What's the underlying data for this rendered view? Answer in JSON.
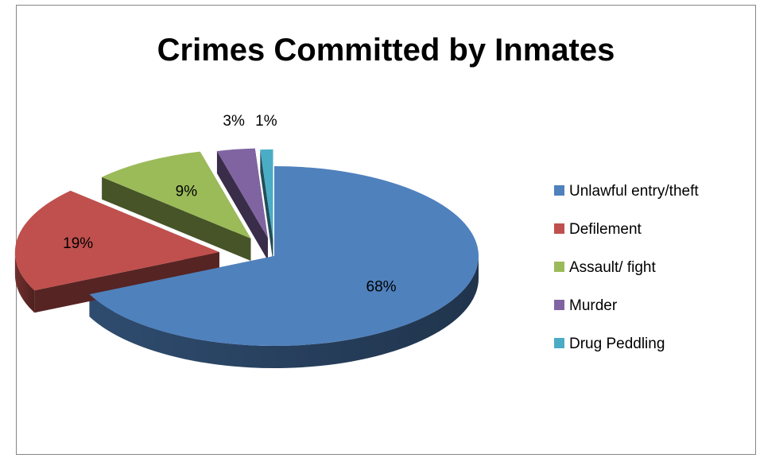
{
  "chart_data": {
    "type": "pie",
    "style": "3d-exploded",
    "title": "Crimes Committed by Inmates",
    "categories": [
      "Unlawful entry/theft",
      "Defilement",
      "Assault/ fight",
      "Murder",
      "Drug Peddling"
    ],
    "values": [
      68,
      19,
      9,
      3,
      1
    ],
    "data_labels": [
      "68%",
      "19%",
      "9%",
      "3%",
      "1%"
    ],
    "colors": [
      "#4F81BD",
      "#C0504D",
      "#9BBB59",
      "#8064A2",
      "#4BACC6"
    ],
    "legend": {
      "position": "right",
      "entries": [
        "Unlawful entry/theft",
        "Defilement",
        "Assault/ fight",
        "Murder",
        "Drug Peddling"
      ]
    }
  }
}
